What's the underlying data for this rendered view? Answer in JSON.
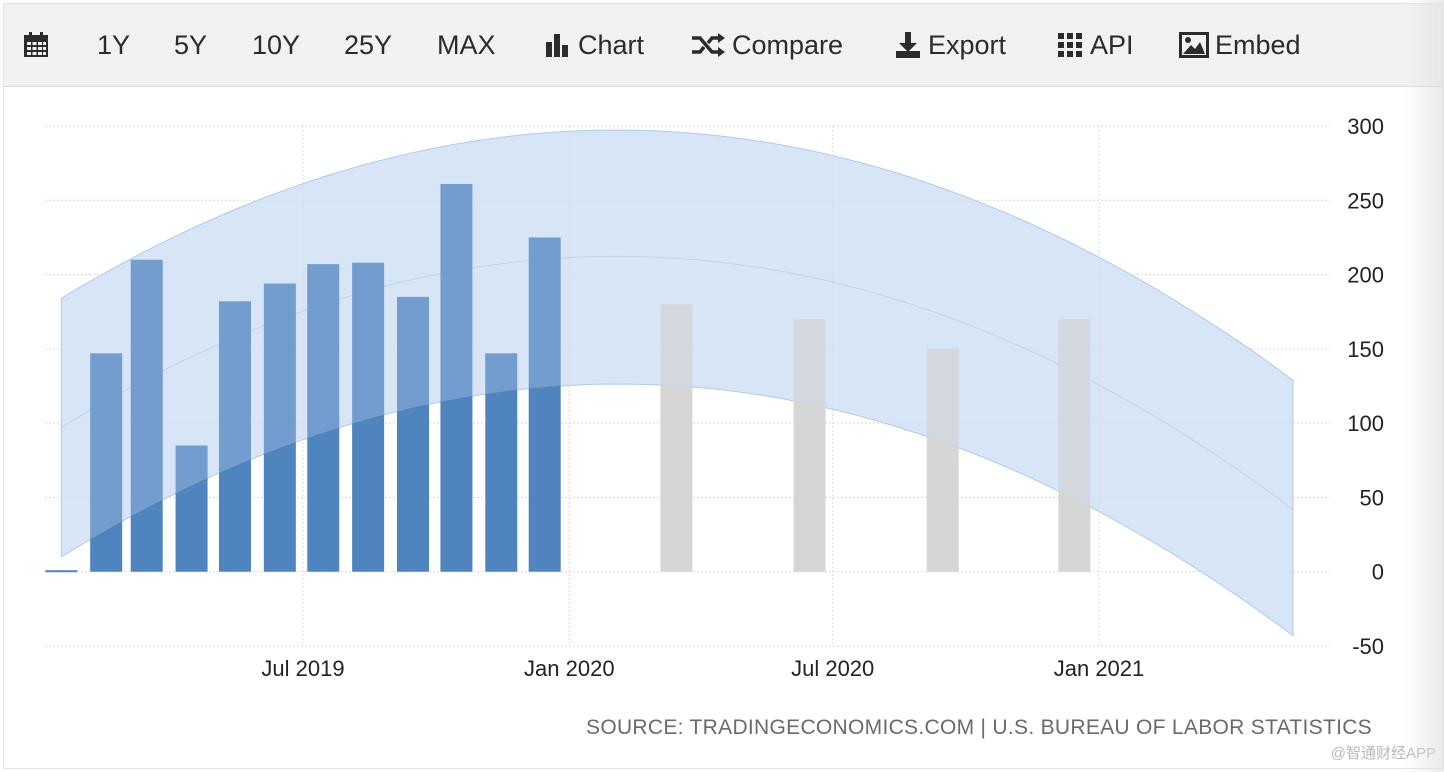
{
  "toolbar": {
    "calendar_icon": "calendar-icon",
    "range_1y": "1Y",
    "range_5y": "5Y",
    "range_10y": "10Y",
    "range_25y": "25Y",
    "range_max": "MAX",
    "chart_label": "Chart",
    "compare_label": "Compare",
    "export_label": "Export",
    "api_label": "API",
    "embed_label": "Embed"
  },
  "source": "SOURCE: TRADINGECONOMICS.COM | U.S. BUREAU OF LABOR STATISTICS",
  "watermark": "@智通财经APP",
  "colors": {
    "actual_bar": "#4a80bd",
    "forecast_bar": "#d4d4d4",
    "band": "#cfe0f6",
    "band_edge": "#a9c6ec"
  },
  "chart_data": {
    "type": "bar",
    "x_ticks": [
      "Jul 2019",
      "Jan 2020",
      "Jul 2020",
      "Jan 2021"
    ],
    "y_ticks": [
      300,
      250,
      200,
      150,
      100,
      50,
      0,
      -50
    ],
    "ylim": [
      -50,
      300
    ],
    "grid": true,
    "y_axis_position": "right",
    "series": [
      {
        "kind": "actual",
        "x": [
          "2019-01",
          "2019-02",
          "2019-03",
          "2019-04",
          "2019-05",
          "2019-06",
          "2019-07",
          "2019-08",
          "2019-09",
          "2019-10",
          "2019-11",
          "2019-12",
          "2020-01"
        ],
        "values": [
          1,
          147,
          210,
          85,
          182,
          194,
          207,
          208,
          185,
          261,
          147,
          225,
          null
        ]
      },
      {
        "kind": "forecast",
        "x": [
          "2020-03",
          "2020-06",
          "2020-09",
          "2020-12"
        ],
        "values": [
          180,
          170,
          150,
          170
        ]
      }
    ],
    "forecast_band": {
      "x": [
        "2019-01",
        "2020-01",
        "2021-05"
      ],
      "upper": [
        184,
        297,
        129
      ],
      "center": [
        97,
        212,
        42
      ],
      "lower": [
        10,
        126,
        -43
      ]
    }
  }
}
